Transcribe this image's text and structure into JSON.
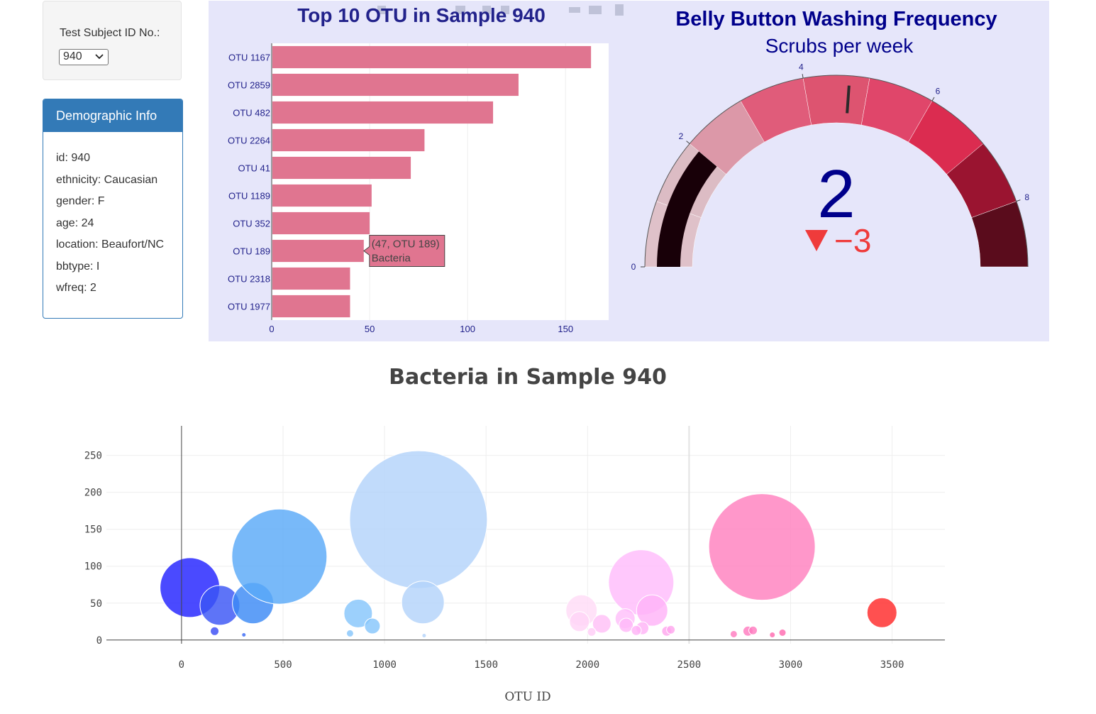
{
  "selector": {
    "label": "Test Subject ID No.:",
    "value": "940"
  },
  "demographics": {
    "heading": "Demographic Info",
    "rows": [
      "id: 940",
      "ethnicity: Caucasian",
      "gender: F",
      "age: 24",
      "location: Beaufort/NC",
      "bbtype: I",
      "wfreq: 2"
    ]
  },
  "colors": {
    "bar": "#e07590",
    "panel_bg": "#e6e6fa",
    "title_navy": "#22228b",
    "accent": "#337ab7"
  },
  "chart_data": [
    {
      "type": "bar",
      "orientation": "horizontal",
      "title": "Top 10 OTU in Sample 940",
      "categories": [
        "OTU 1167",
        "OTU 2859",
        "OTU 482",
        "OTU 2264",
        "OTU 41",
        "OTU 1189",
        "OTU 352",
        "OTU 189",
        "OTU 2318",
        "OTU 1977"
      ],
      "values": [
        163,
        126,
        113,
        78,
        71,
        51,
        50,
        47,
        40,
        40
      ],
      "xticks": [
        0,
        50,
        100,
        150
      ],
      "xlim": [
        0,
        172
      ],
      "tooltip": {
        "line1": "(47, OTU 189)",
        "line2": "Bacteria",
        "index": 7
      }
    },
    {
      "type": "gauge",
      "title": "Belly Button Washing Frequency",
      "subtitle": "Scrubs per week",
      "value": 2,
      "delta": "−3",
      "range": [
        0,
        9
      ],
      "ticks": [
        "0",
        "2",
        "4",
        "6",
        "8"
      ],
      "steps": [
        {
          "range": [
            0,
            1
          ],
          "color": "#dfc1c9"
        },
        {
          "range": [
            1,
            2
          ],
          "color": "#dcbcc4"
        },
        {
          "range": [
            2,
            3
          ],
          "color": "#dc98a8"
        },
        {
          "range": [
            3,
            4
          ],
          "color": "#e05c7a"
        },
        {
          "range": [
            4,
            5
          ],
          "color": "#dd5470"
        },
        {
          "range": [
            5,
            6
          ],
          "color": "#e0466a"
        },
        {
          "range": [
            6,
            7
          ],
          "color": "#db2c50"
        },
        {
          "range": [
            7,
            8
          ],
          "color": "#9a1430"
        },
        {
          "range": [
            8,
            9
          ],
          "color": "#5a0c1c"
        }
      ],
      "bar_color": "#180008",
      "threshold": 4.7,
      "delta_color": "#ef3b3b",
      "value_color": "#00008b"
    },
    {
      "type": "scatter",
      "title": "Bacteria in Sample 940",
      "xlabel": "OTU ID",
      "ylabel": "",
      "xlim": [
        -370,
        3760
      ],
      "ylim": [
        -5,
        290
      ],
      "xticks": [
        0,
        500,
        1000,
        1500,
        2000,
        2500,
        3000,
        3500
      ],
      "yticks": [
        0,
        50,
        100,
        150,
        200,
        250
      ],
      "points": [
        {
          "x": 41,
          "y": 71,
          "r": 42,
          "c": "#2222ff"
        },
        {
          "x": 189,
          "y": 47,
          "r": 28,
          "c": "#3a55f5"
        },
        {
          "x": 163,
          "y": 12,
          "r": 6,
          "c": "#3a4df5"
        },
        {
          "x": 352,
          "y": 50,
          "r": 29,
          "c": "#3c8af5"
        },
        {
          "x": 307,
          "y": 7,
          "r": 3,
          "c": "#3a6af5"
        },
        {
          "x": 482,
          "y": 113,
          "r": 67,
          "c": "#5aaaf8"
        },
        {
          "x": 870,
          "y": 36,
          "r": 20,
          "c": "#86c6fb"
        },
        {
          "x": 940,
          "y": 19,
          "r": 11,
          "c": "#86c6fb"
        },
        {
          "x": 830,
          "y": 9,
          "r": 5,
          "c": "#86c6fb"
        },
        {
          "x": 1167,
          "y": 163,
          "r": 97,
          "c": "#b3d3fa"
        },
        {
          "x": 1189,
          "y": 51,
          "r": 30,
          "c": "#b3d3fa"
        },
        {
          "x": 1195,
          "y": 6,
          "r": 3,
          "c": "#b3d3fa"
        },
        {
          "x": 1970,
          "y": 40,
          "r": 22,
          "c": "#ffdcf7"
        },
        {
          "x": 1960,
          "y": 25,
          "r": 14,
          "c": "#ffd4f6"
        },
        {
          "x": 2070,
          "y": 22,
          "r": 13,
          "c": "#ffbff6"
        },
        {
          "x": 2264,
          "y": 78,
          "r": 46,
          "c": "#ffbcfb"
        },
        {
          "x": 2185,
          "y": 29,
          "r": 14,
          "c": "#ffc0fa"
        },
        {
          "x": 2318,
          "y": 40,
          "r": 22,
          "c": "#ffb3f8"
        },
        {
          "x": 2190,
          "y": 20,
          "r": 10,
          "c": "#ffb8f8"
        },
        {
          "x": 2270,
          "y": 16,
          "r": 9,
          "c": "#ffb3f6"
        },
        {
          "x": 2240,
          "y": 13,
          "r": 7,
          "c": "#ffb3f6"
        },
        {
          "x": 2390,
          "y": 12,
          "r": 7,
          "c": "#ffa6ee"
        },
        {
          "x": 2410,
          "y": 14,
          "r": 6,
          "c": "#ffa6ee"
        },
        {
          "x": 2020,
          "y": 11,
          "r": 6,
          "c": "#ffcdf6"
        },
        {
          "x": 2859,
          "y": 126,
          "r": 75,
          "c": "#ff80be"
        },
        {
          "x": 2790,
          "y": 12,
          "r": 7,
          "c": "#ff7bc0"
        },
        {
          "x": 2815,
          "y": 13,
          "r": 6,
          "c": "#ff7bc0"
        },
        {
          "x": 2720,
          "y": 8,
          "r": 5,
          "c": "#ff7bc0"
        },
        {
          "x": 2960,
          "y": 10,
          "r": 5,
          "c": "#ff6ab0"
        },
        {
          "x": 2910,
          "y": 7,
          "r": 4,
          "c": "#ff6ab0"
        },
        {
          "x": 3450,
          "y": 37,
          "r": 21,
          "c": "#ff2a2a"
        }
      ]
    }
  ]
}
